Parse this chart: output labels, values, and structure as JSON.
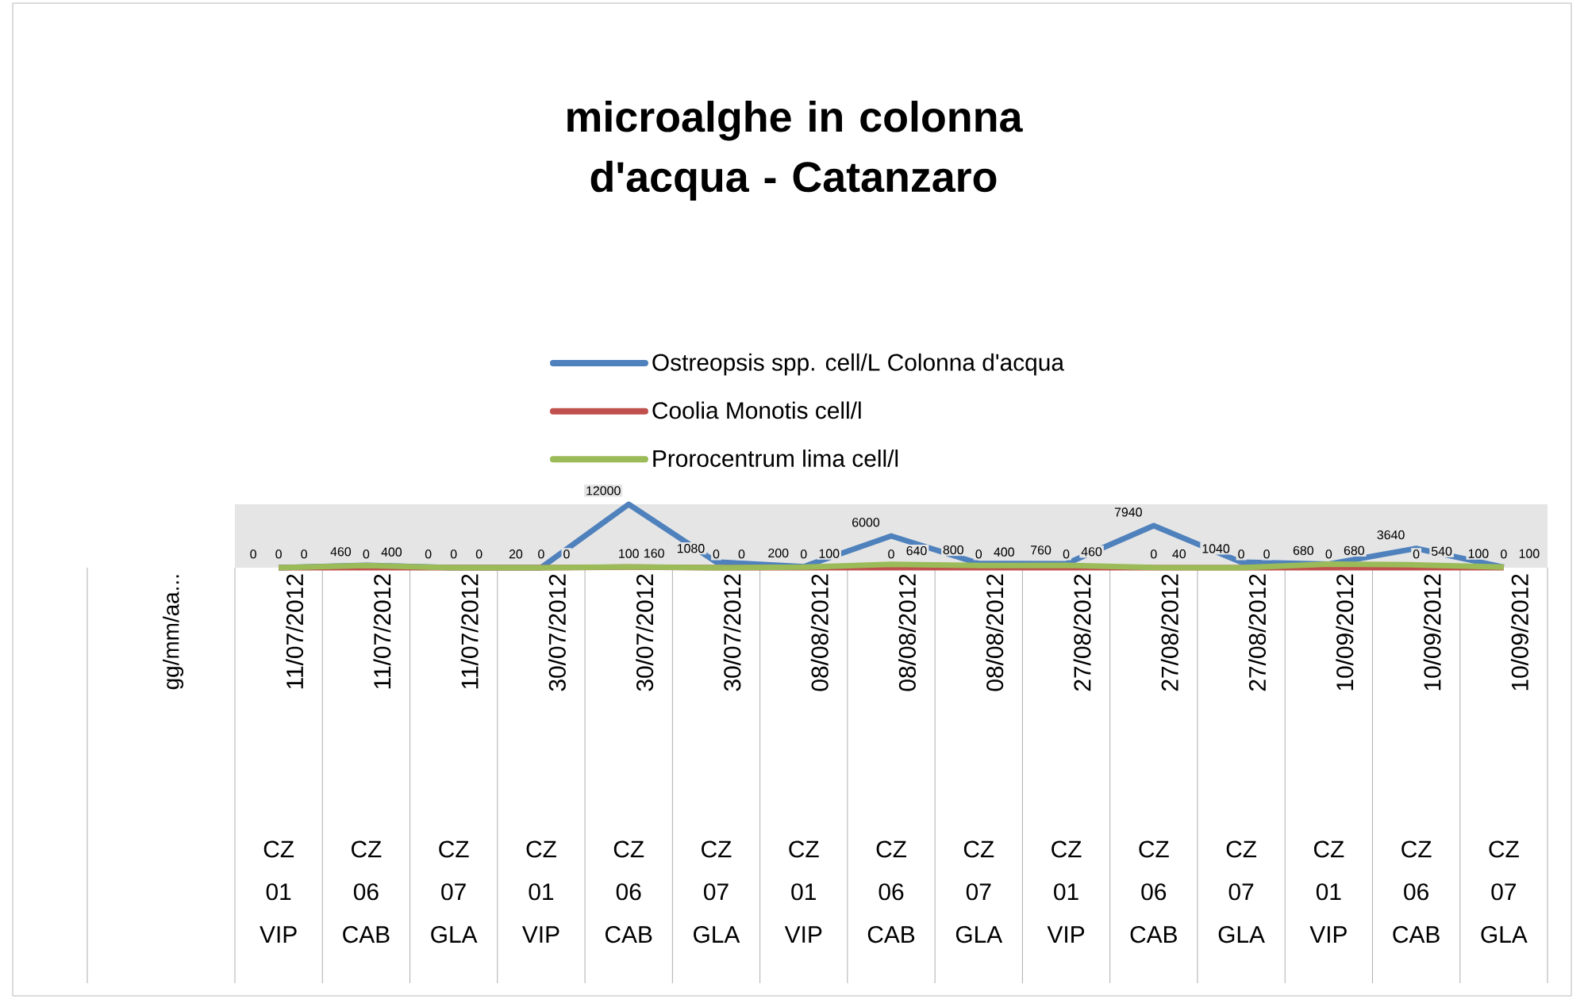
{
  "chart_data": {
    "type": "line",
    "title": "microalghe in colonna d'acqua - Catanzaro",
    "ylabel": "gg/mm/aa...",
    "categories": [
      "11/07/2012",
      "11/07/2012",
      "11/07/2012",
      "30/07/2012",
      "30/07/2012",
      "30/07/2012",
      "08/08/2012",
      "08/08/2012",
      "08/08/2012",
      "27/08/2012",
      "27/08/2012",
      "27/08/2012",
      "10/09/2012",
      "10/09/2012",
      "10/09/2012"
    ],
    "series": [
      {
        "name": "Ostreopsis spp. cell/L Colonna d'acqua",
        "color": "#4f81bd",
        "values": [
          0,
          460,
          0,
          20,
          12000,
          1080,
          200,
          6000,
          800,
          760,
          7940,
          1040,
          680,
          3640,
          100
        ]
      },
      {
        "name": "Coolia Monotis cell/l",
        "color": "#c0504d",
        "values": [
          0,
          0,
          0,
          0,
          100,
          0,
          0,
          0,
          0,
          0,
          0,
          0,
          0,
          0,
          0
        ]
      },
      {
        "name": "Prorocentrum lima cell/l",
        "color": "#9bbb59",
        "values": [
          0,
          400,
          0,
          0,
          160,
          0,
          100,
          640,
          400,
          460,
          40,
          0,
          680,
          540,
          100
        ]
      }
    ],
    "data_labels": true,
    "legend": "top",
    "annotations": [
      "CZ 01 VIP",
      "CZ 06 CAB",
      "CZ 07 GLA",
      "CZ 01 VIP",
      "CZ 06 CAB",
      "CZ 07 GLA",
      "CZ 01 VIP",
      "CZ 06 CAB",
      "CZ 07 GLA",
      "CZ 01 VIP",
      "CZ 06 CAB",
      "CZ 07 GLA",
      "CZ 01 VIP",
      "CZ 06 CAB",
      "CZ 07 GLA"
    ]
  }
}
